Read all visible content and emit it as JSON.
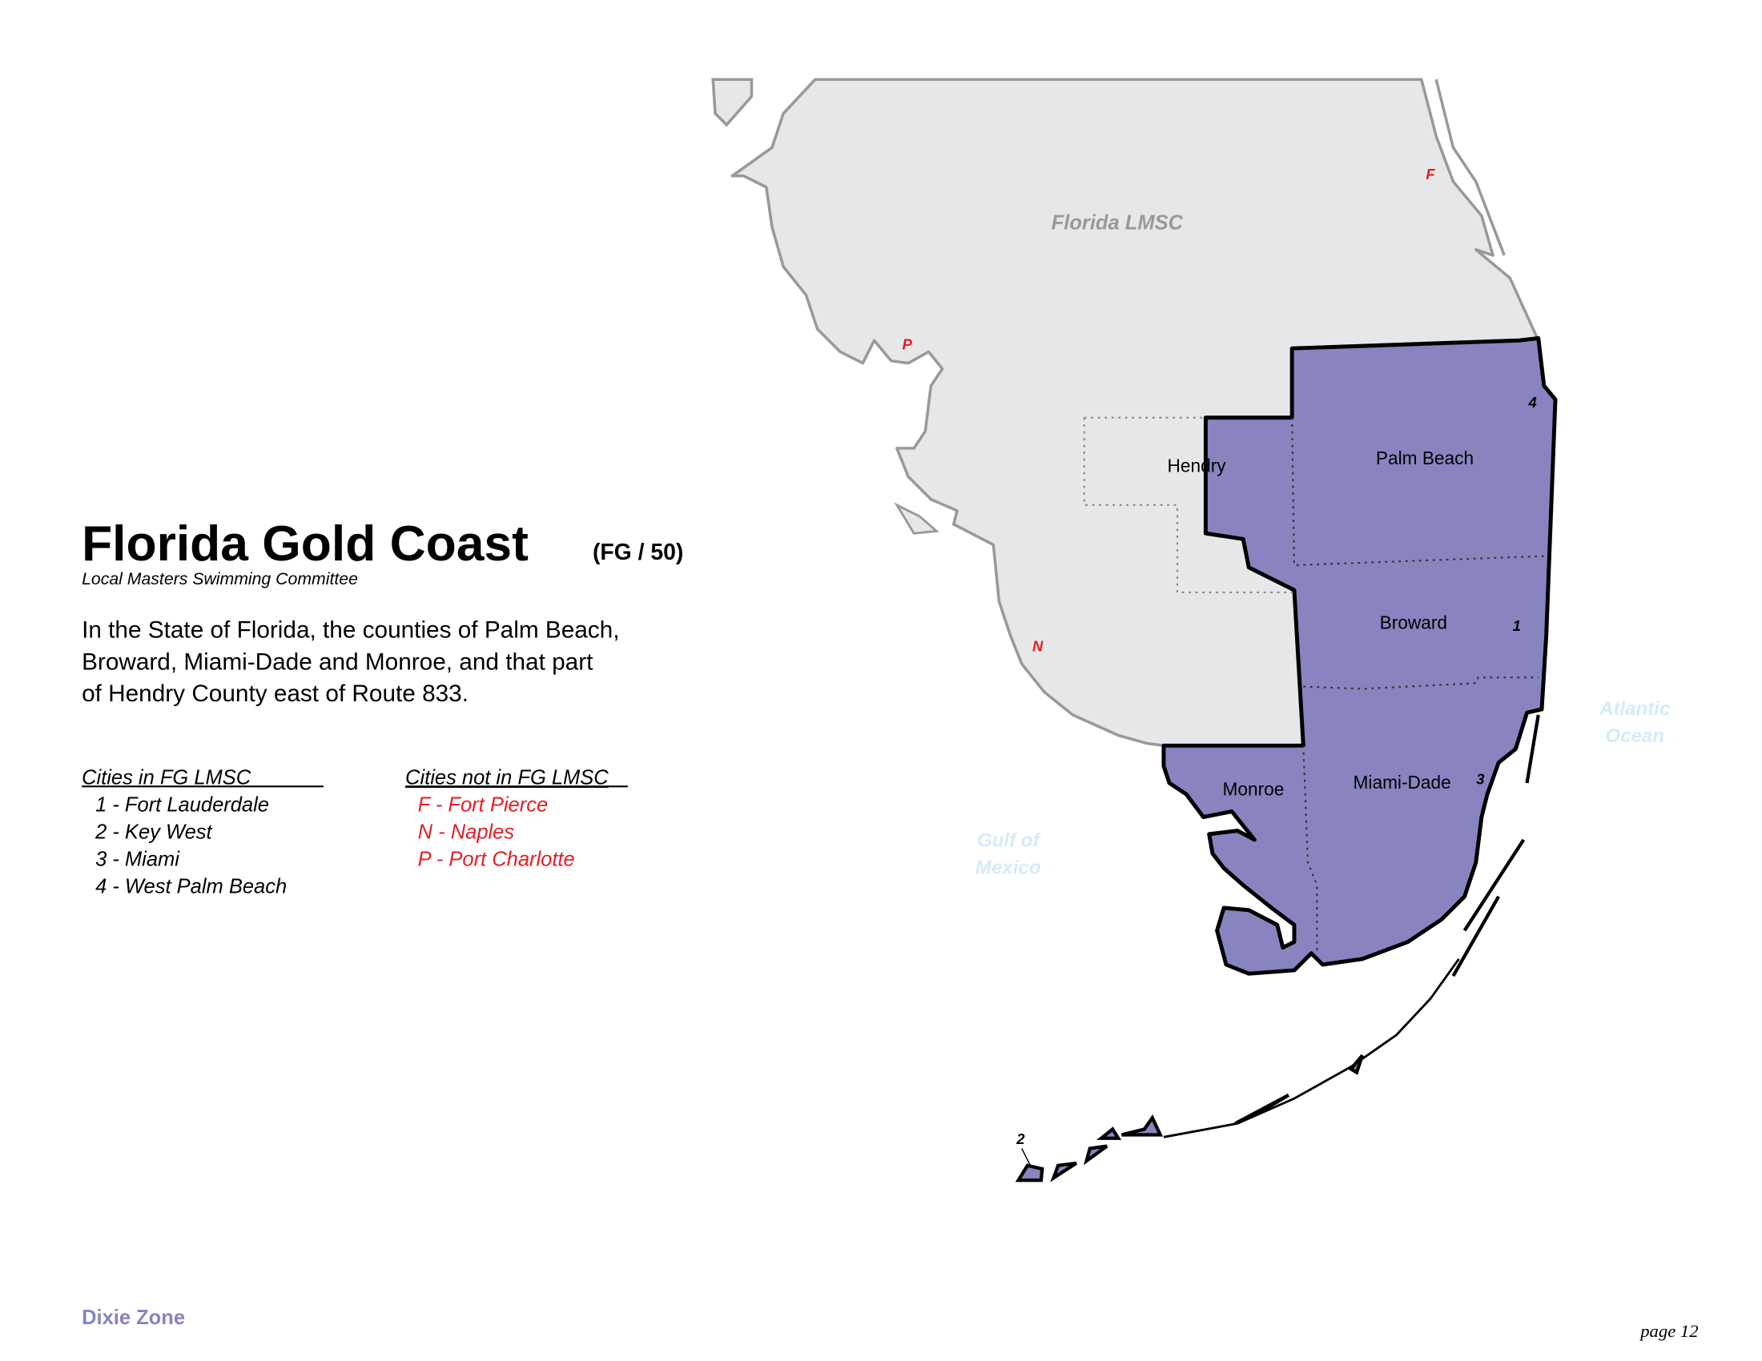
{
  "header": {
    "title": "Florida Gold Coast",
    "code": "(FG / 50)",
    "subtitle": "Local Masters Swimming Committee"
  },
  "description": [
    "In the State of Florida, the counties of Palm Beach,",
    "Broward, Miami-Dade and Monroe, and that part",
    "of Hendry County east of Route 833."
  ],
  "cities_in": {
    "heading": "Cities in FG LMSC",
    "items": [
      "1 - Fort Lauderdale",
      "2 - Key West",
      "3 - Miami",
      "4 - West Palm Beach"
    ]
  },
  "cities_not_in": {
    "heading": "Cities not in FG LMSC",
    "items": [
      "F - Fort Pierce",
      "N - Naples",
      "P - Port Charlotte"
    ]
  },
  "map": {
    "region_label": "Florida LMSC",
    "counties": [
      "Hendry",
      "Palm Beach",
      "Broward",
      "Miami-Dade",
      "Monroe"
    ],
    "water": [
      "Gulf of",
      "Mexico",
      "Atlantic",
      "Ocean"
    ],
    "markers": [
      "F",
      "P",
      "N",
      "1",
      "2",
      "3",
      "4"
    ]
  },
  "footer": {
    "zone": "Dixie Zone",
    "page": "page 12"
  }
}
